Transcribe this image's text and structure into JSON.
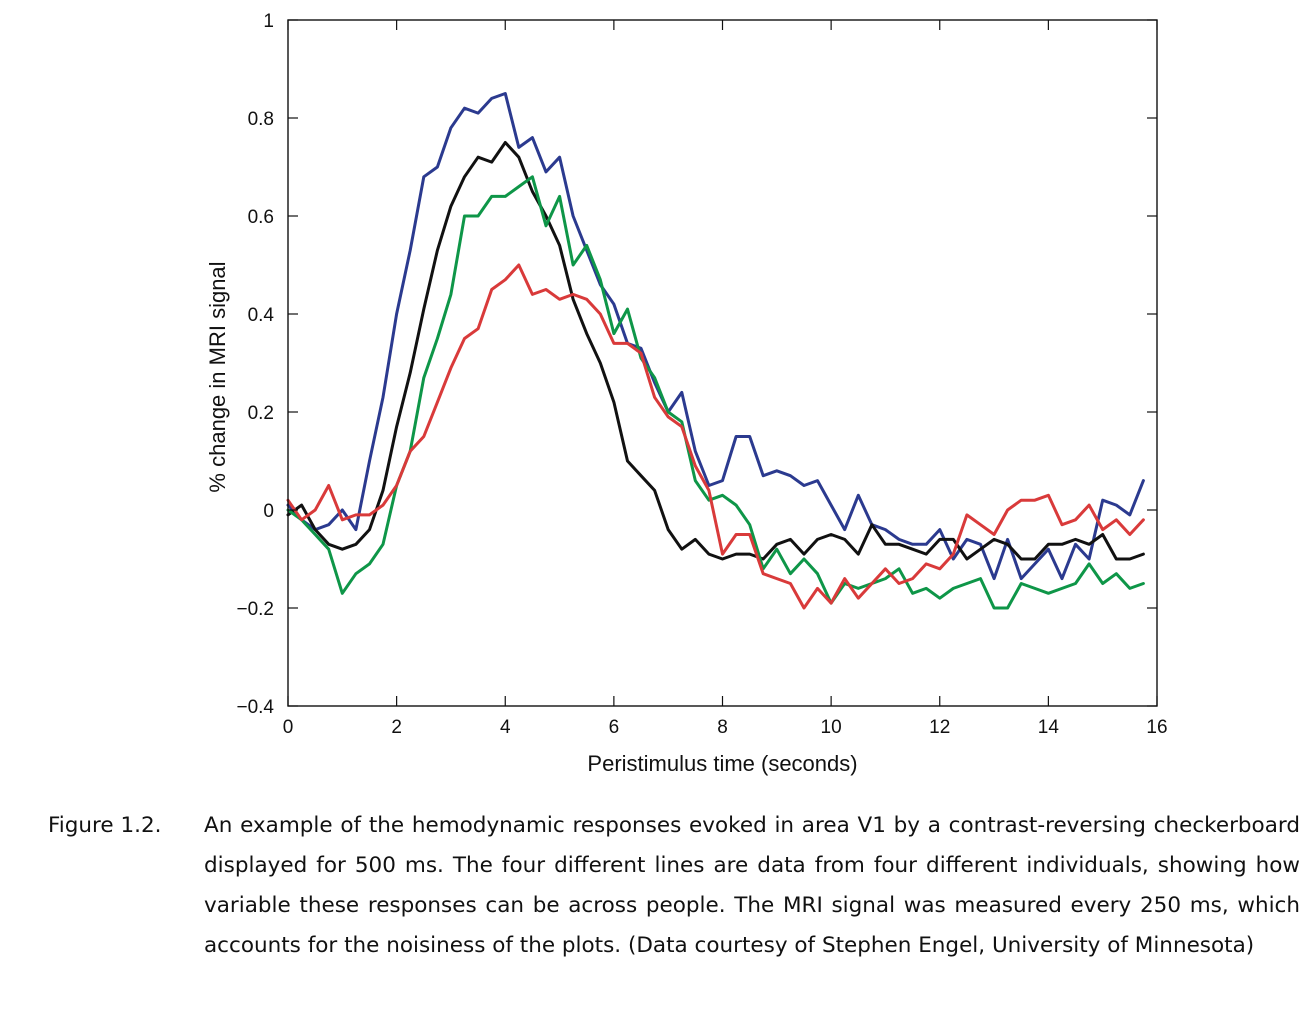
{
  "chart_data": {
    "type": "line",
    "title": "",
    "xlabel": "Peristimulus time (seconds)",
    "ylabel": "% change in MRI signal",
    "xlim": [
      0,
      16
    ],
    "ylim": [
      -0.4,
      1
    ],
    "x_ticks": [
      0,
      2,
      4,
      6,
      8,
      10,
      12,
      14,
      16
    ],
    "x_tick_labels": [
      "0",
      "2",
      "4",
      "6",
      "8",
      "10",
      "12",
      "14",
      "16"
    ],
    "y_ticks": [
      -0.4,
      -0.2,
      0,
      0.2,
      0.4,
      0.6,
      0.8,
      1
    ],
    "y_tick_labels": [
      "−0.4",
      "−0.2",
      "0",
      "0.2",
      "0.4",
      "0.6",
      "0.8",
      "1"
    ],
    "grid": false,
    "legend": "none",
    "x": [
      0,
      0.25,
      0.5,
      0.75,
      1,
      1.25,
      1.5,
      1.75,
      2,
      2.25,
      2.5,
      2.75,
      3,
      3.25,
      3.5,
      3.75,
      4,
      4.25,
      4.5,
      4.75,
      5,
      5.25,
      5.5,
      5.75,
      6,
      6.25,
      6.5,
      6.75,
      7,
      7.25,
      7.5,
      7.75,
      8,
      8.25,
      8.5,
      8.75,
      9,
      9.25,
      9.5,
      9.75,
      10,
      10.25,
      10.5,
      10.75,
      11,
      11.25,
      11.5,
      11.75,
      12,
      12.25,
      12.5,
      12.75,
      13,
      13.25,
      13.5,
      13.75,
      14,
      14.25,
      14.5,
      14.75,
      15,
      15.25,
      15.5,
      15.75
    ],
    "series": [
      {
        "color": "#2b3a8f",
        "values": [
          0.01,
          -0.02,
          -0.04,
          -0.03,
          0.0,
          -0.04,
          0.1,
          0.23,
          0.4,
          0.53,
          0.68,
          0.7,
          0.78,
          0.82,
          0.81,
          0.84,
          0.85,
          0.74,
          0.76,
          0.69,
          0.72,
          0.6,
          0.53,
          0.46,
          0.42,
          0.34,
          0.33,
          0.26,
          0.2,
          0.24,
          0.12,
          0.05,
          0.06,
          0.15,
          0.15,
          0.07,
          0.08,
          0.07,
          0.05,
          0.06,
          0.01,
          -0.04,
          0.03,
          -0.03,
          -0.04,
          -0.06,
          -0.07,
          -0.07,
          -0.04,
          -0.1,
          -0.06,
          -0.07,
          -0.14,
          -0.06,
          -0.14,
          -0.11,
          -0.08,
          -0.14,
          -0.07,
          -0.1,
          0.02,
          0.01,
          -0.01,
          0.06
        ]
      },
      {
        "color": "#111111",
        "values": [
          -0.01,
          0.01,
          -0.04,
          -0.07,
          -0.08,
          -0.07,
          -0.04,
          0.04,
          0.17,
          0.28,
          0.41,
          0.53,
          0.62,
          0.68,
          0.72,
          0.71,
          0.75,
          0.72,
          0.65,
          0.6,
          0.54,
          0.43,
          0.36,
          0.3,
          0.22,
          0.1,
          0.07,
          0.04,
          -0.04,
          -0.08,
          -0.06,
          -0.09,
          -0.1,
          -0.09,
          -0.09,
          -0.1,
          -0.07,
          -0.06,
          -0.09,
          -0.06,
          -0.05,
          -0.06,
          -0.09,
          -0.03,
          -0.07,
          -0.07,
          -0.08,
          -0.09,
          -0.06,
          -0.06,
          -0.1,
          -0.08,
          -0.06,
          -0.07,
          -0.1,
          -0.1,
          -0.07,
          -0.07,
          -0.06,
          -0.07,
          -0.05,
          -0.1,
          -0.1,
          -0.09
        ]
      },
      {
        "color": "#0e9648",
        "values": [
          0.0,
          -0.02,
          -0.05,
          -0.08,
          -0.17,
          -0.13,
          -0.11,
          -0.07,
          0.05,
          0.12,
          0.27,
          0.35,
          0.44,
          0.6,
          0.6,
          0.64,
          0.64,
          0.66,
          0.68,
          0.58,
          0.64,
          0.5,
          0.54,
          0.47,
          0.36,
          0.41,
          0.31,
          0.27,
          0.2,
          0.18,
          0.06,
          0.02,
          0.03,
          0.01,
          -0.03,
          -0.12,
          -0.08,
          -0.13,
          -0.1,
          -0.13,
          -0.19,
          -0.15,
          -0.16,
          -0.15,
          -0.14,
          -0.12,
          -0.17,
          -0.16,
          -0.18,
          -0.16,
          -0.15,
          -0.14,
          -0.2,
          -0.2,
          -0.15,
          -0.16,
          -0.17,
          -0.16,
          -0.15,
          -0.11,
          -0.15,
          -0.13,
          -0.16,
          -0.15
        ]
      },
      {
        "color": "#d93a3a",
        "values": [
          0.02,
          -0.02,
          0.0,
          0.05,
          -0.02,
          -0.01,
          -0.01,
          0.01,
          0.05,
          0.12,
          0.15,
          0.22,
          0.29,
          0.35,
          0.37,
          0.45,
          0.47,
          0.5,
          0.44,
          0.45,
          0.43,
          0.44,
          0.43,
          0.4,
          0.34,
          0.34,
          0.32,
          0.23,
          0.19,
          0.17,
          0.09,
          0.04,
          -0.09,
          -0.05,
          -0.05,
          -0.13,
          -0.14,
          -0.15,
          -0.2,
          -0.16,
          -0.19,
          -0.14,
          -0.18,
          -0.15,
          -0.12,
          -0.15,
          -0.14,
          -0.11,
          -0.12,
          -0.09,
          -0.01,
          -0.03,
          -0.05,
          0.0,
          0.02,
          0.02,
          0.03,
          -0.03,
          -0.02,
          0.01,
          -0.04,
          -0.02,
          -0.05,
          -0.02
        ]
      }
    ]
  },
  "caption": {
    "label": "Figure 1.2.",
    "text": "An example of the hemodynamic responses evoked in area V1 by a contrast-reversing checker­board displayed for 500 ms. The four different lines are data from four different individuals, showing how variable these responses can be across people. The MRI signal was measured every 250 ms, which accounts for the noisiness of the plots. (Data courtesy of Stephen Engel, University of Minnesota)"
  }
}
